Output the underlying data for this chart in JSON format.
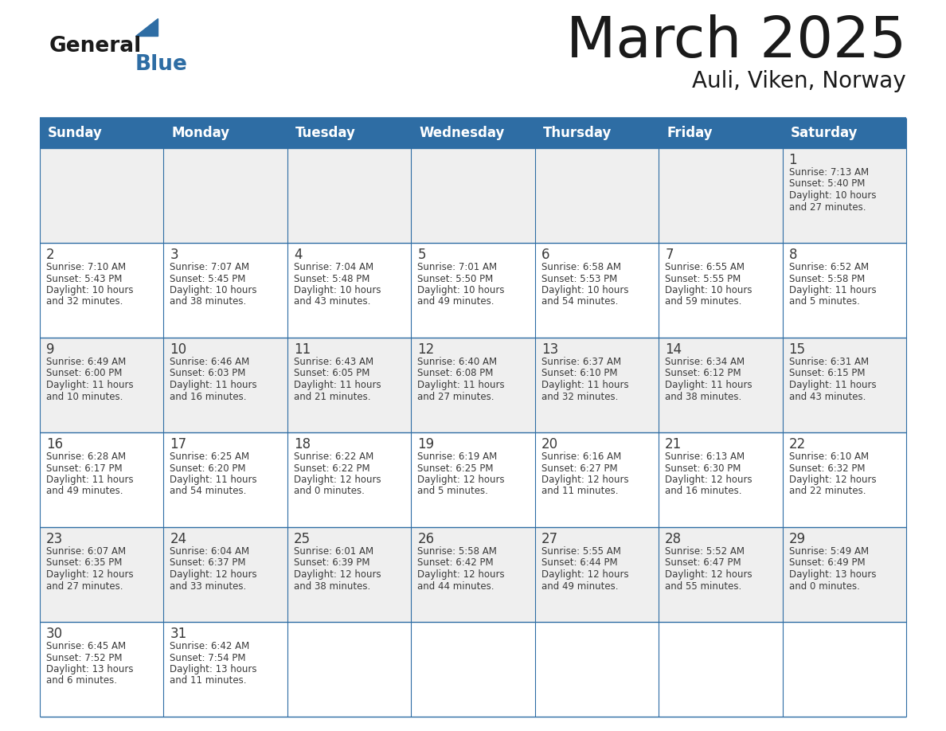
{
  "title": "March 2025",
  "subtitle": "Auli, Viken, Norway",
  "days_of_week": [
    "Sunday",
    "Monday",
    "Tuesday",
    "Wednesday",
    "Thursday",
    "Friday",
    "Saturday"
  ],
  "header_bg": "#2E6DA4",
  "header_text": "#FFFFFF",
  "cell_bg_odd": "#EFEFEF",
  "cell_bg_even": "#FFFFFF",
  "border_color": "#2E6DA4",
  "text_color": "#3a3a3a",
  "title_color": "#1a1a1a",
  "logo_black": "#1a1a1a",
  "logo_blue": "#2E6DA4",
  "calendar_data": [
    [
      null,
      null,
      null,
      null,
      null,
      null,
      {
        "day": 1,
        "sunrise": "7:13 AM",
        "sunset": "5:40 PM",
        "daylight": "10 hours",
        "daylight2": "and 27 minutes."
      }
    ],
    [
      {
        "day": 2,
        "sunrise": "7:10 AM",
        "sunset": "5:43 PM",
        "daylight": "10 hours",
        "daylight2": "and 32 minutes."
      },
      {
        "day": 3,
        "sunrise": "7:07 AM",
        "sunset": "5:45 PM",
        "daylight": "10 hours",
        "daylight2": "and 38 minutes."
      },
      {
        "day": 4,
        "sunrise": "7:04 AM",
        "sunset": "5:48 PM",
        "daylight": "10 hours",
        "daylight2": "and 43 minutes."
      },
      {
        "day": 5,
        "sunrise": "7:01 AM",
        "sunset": "5:50 PM",
        "daylight": "10 hours",
        "daylight2": "and 49 minutes."
      },
      {
        "day": 6,
        "sunrise": "6:58 AM",
        "sunset": "5:53 PM",
        "daylight": "10 hours",
        "daylight2": "and 54 minutes."
      },
      {
        "day": 7,
        "sunrise": "6:55 AM",
        "sunset": "5:55 PM",
        "daylight": "10 hours",
        "daylight2": "and 59 minutes."
      },
      {
        "day": 8,
        "sunrise": "6:52 AM",
        "sunset": "5:58 PM",
        "daylight": "11 hours",
        "daylight2": "and 5 minutes."
      }
    ],
    [
      {
        "day": 9,
        "sunrise": "6:49 AM",
        "sunset": "6:00 PM",
        "daylight": "11 hours",
        "daylight2": "and 10 minutes."
      },
      {
        "day": 10,
        "sunrise": "6:46 AM",
        "sunset": "6:03 PM",
        "daylight": "11 hours",
        "daylight2": "and 16 minutes."
      },
      {
        "day": 11,
        "sunrise": "6:43 AM",
        "sunset": "6:05 PM",
        "daylight": "11 hours",
        "daylight2": "and 21 minutes."
      },
      {
        "day": 12,
        "sunrise": "6:40 AM",
        "sunset": "6:08 PM",
        "daylight": "11 hours",
        "daylight2": "and 27 minutes."
      },
      {
        "day": 13,
        "sunrise": "6:37 AM",
        "sunset": "6:10 PM",
        "daylight": "11 hours",
        "daylight2": "and 32 minutes."
      },
      {
        "day": 14,
        "sunrise": "6:34 AM",
        "sunset": "6:12 PM",
        "daylight": "11 hours",
        "daylight2": "and 38 minutes."
      },
      {
        "day": 15,
        "sunrise": "6:31 AM",
        "sunset": "6:15 PM",
        "daylight": "11 hours",
        "daylight2": "and 43 minutes."
      }
    ],
    [
      {
        "day": 16,
        "sunrise": "6:28 AM",
        "sunset": "6:17 PM",
        "daylight": "11 hours",
        "daylight2": "and 49 minutes."
      },
      {
        "day": 17,
        "sunrise": "6:25 AM",
        "sunset": "6:20 PM",
        "daylight": "11 hours",
        "daylight2": "and 54 minutes."
      },
      {
        "day": 18,
        "sunrise": "6:22 AM",
        "sunset": "6:22 PM",
        "daylight": "12 hours",
        "daylight2": "and 0 minutes."
      },
      {
        "day": 19,
        "sunrise": "6:19 AM",
        "sunset": "6:25 PM",
        "daylight": "12 hours",
        "daylight2": "and 5 minutes."
      },
      {
        "day": 20,
        "sunrise": "6:16 AM",
        "sunset": "6:27 PM",
        "daylight": "12 hours",
        "daylight2": "and 11 minutes."
      },
      {
        "day": 21,
        "sunrise": "6:13 AM",
        "sunset": "6:30 PM",
        "daylight": "12 hours",
        "daylight2": "and 16 minutes."
      },
      {
        "day": 22,
        "sunrise": "6:10 AM",
        "sunset": "6:32 PM",
        "daylight": "12 hours",
        "daylight2": "and 22 minutes."
      }
    ],
    [
      {
        "day": 23,
        "sunrise": "6:07 AM",
        "sunset": "6:35 PM",
        "daylight": "12 hours",
        "daylight2": "and 27 minutes."
      },
      {
        "day": 24,
        "sunrise": "6:04 AM",
        "sunset": "6:37 PM",
        "daylight": "12 hours",
        "daylight2": "and 33 minutes."
      },
      {
        "day": 25,
        "sunrise": "6:01 AM",
        "sunset": "6:39 PM",
        "daylight": "12 hours",
        "daylight2": "and 38 minutes."
      },
      {
        "day": 26,
        "sunrise": "5:58 AM",
        "sunset": "6:42 PM",
        "daylight": "12 hours",
        "daylight2": "and 44 minutes."
      },
      {
        "day": 27,
        "sunrise": "5:55 AM",
        "sunset": "6:44 PM",
        "daylight": "12 hours",
        "daylight2": "and 49 minutes."
      },
      {
        "day": 28,
        "sunrise": "5:52 AM",
        "sunset": "6:47 PM",
        "daylight": "12 hours",
        "daylight2": "and 55 minutes."
      },
      {
        "day": 29,
        "sunrise": "5:49 AM",
        "sunset": "6:49 PM",
        "daylight": "13 hours",
        "daylight2": "and 0 minutes."
      }
    ],
    [
      {
        "day": 30,
        "sunrise": "6:45 AM",
        "sunset": "7:52 PM",
        "daylight": "13 hours",
        "daylight2": "and 6 minutes."
      },
      {
        "day": 31,
        "sunrise": "6:42 AM",
        "sunset": "7:54 PM",
        "daylight": "13 hours",
        "daylight2": "and 11 minutes."
      },
      null,
      null,
      null,
      null,
      null
    ]
  ]
}
